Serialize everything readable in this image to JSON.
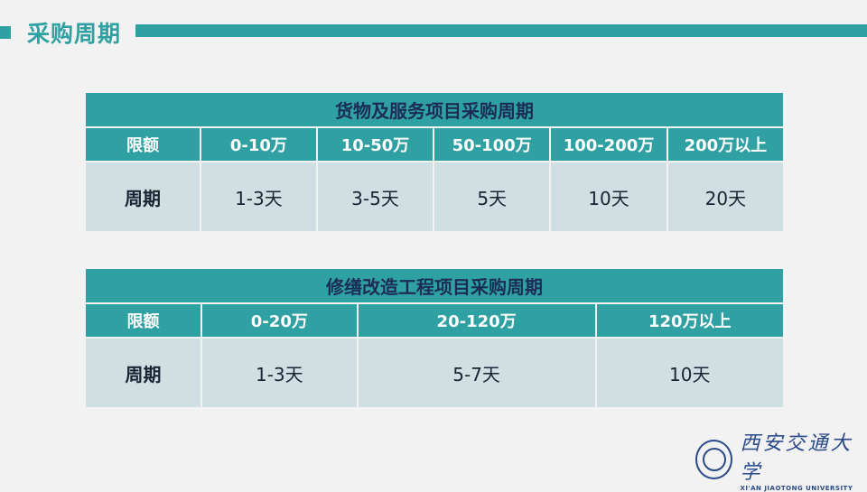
{
  "colors": {
    "accent": "#2fa1a3",
    "title_text": "#1c2d55",
    "body_cell": "#cfdfe2",
    "background": "#f2f2f2"
  },
  "page_title": "采购周期",
  "table1": {
    "title": "货物及服务项目采购周期",
    "headers": [
      "限额",
      "0-10万",
      "10-50万",
      "50-100万",
      "100-200万",
      "200万以上"
    ],
    "row": [
      "周期",
      "1-3天",
      "3-5天",
      "5天",
      "10天",
      "20天"
    ]
  },
  "table2": {
    "title": "修缮改造工程项目采购周期",
    "headers": [
      "限额",
      "0-20万",
      "20-120万",
      "120万以上"
    ],
    "row": [
      "周期",
      "1-3天",
      "5-7天",
      "10天"
    ]
  },
  "logo": {
    "cn": "西安交通大学",
    "en": "XI'AN JIAOTONG UNIVERSITY"
  }
}
